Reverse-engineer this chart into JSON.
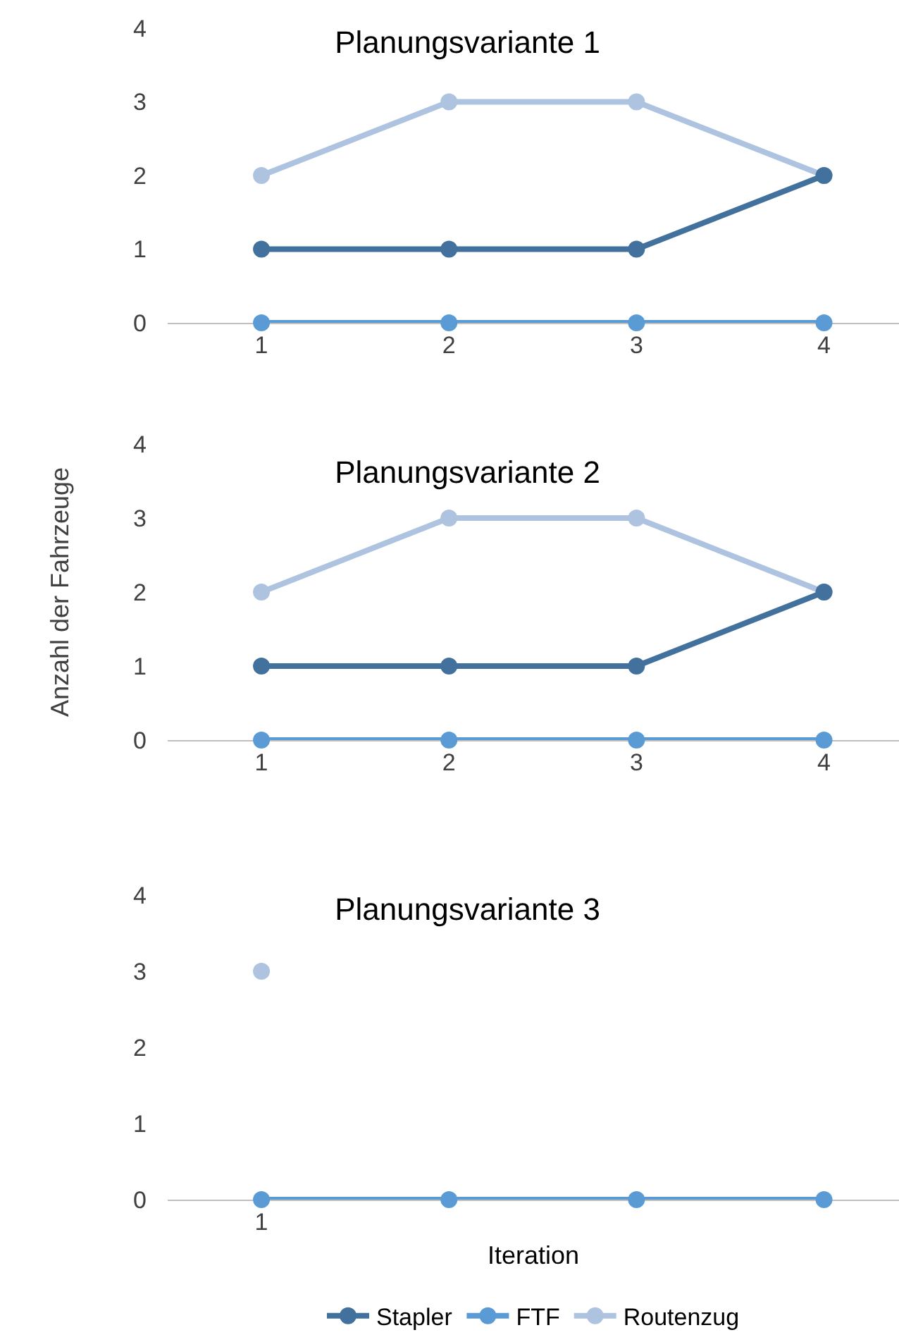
{
  "chart_data": [
    {
      "type": "line",
      "title": "Planungsvariante 1",
      "categories": [
        "1",
        "2",
        "3",
        "4"
      ],
      "ylim": [
        0,
        4
      ],
      "yticks": [
        0,
        1,
        2,
        3,
        4
      ],
      "grid": false,
      "legend": false,
      "marker": "circle",
      "line_style": "solid",
      "series": [
        {
          "color": "#adc3e0",
          "values": [
            2,
            3,
            3,
            2
          ]
        },
        {
          "color": "#41719c",
          "values": [
            1,
            1,
            1,
            2
          ]
        },
        {
          "color": "#5b9bd5",
          "values": [
            0,
            0,
            0,
            0
          ]
        }
      ]
    },
    {
      "type": "line",
      "title": "Planungsvariante 2",
      "ylabel": "Anzahl der Fahrzeuge",
      "categories": [
        "1",
        "2",
        "3",
        "4"
      ],
      "ylim": [
        0,
        4
      ],
      "yticks": [
        0,
        1,
        2,
        3,
        4
      ],
      "grid": false,
      "legend": false,
      "marker": "circle",
      "line_style": "solid",
      "series": [
        {
          "color": "#adc3e0",
          "values": [
            2,
            3,
            3,
            2
          ]
        },
        {
          "color": "#41719c",
          "values": [
            1,
            1,
            1,
            2
          ]
        },
        {
          "color": "#5b9bd5",
          "values": [
            0,
            0,
            0,
            0
          ]
        }
      ]
    },
    {
      "type": "line",
      "title": "Planungsvariante 3",
      "xlabel": "Iteration",
      "categories": [
        "1",
        null,
        null,
        null
      ],
      "ylim": [
        0,
        4
      ],
      "yticks": [
        0,
        1,
        2,
        3,
        4
      ],
      "grid": false,
      "legend": "bottom",
      "marker": "circle",
      "line_style": "solid",
      "series": [
        {
          "name": "Stapler",
          "color": "#41719c",
          "values": [
            null,
            null,
            null,
            null
          ]
        },
        {
          "name": "FTF",
          "color": "#5b9bd5",
          "values": [
            0,
            0,
            0,
            0
          ]
        },
        {
          "name": "Routenzug",
          "color": "#adc3e0",
          "values": [
            3,
            null,
            null,
            null
          ]
        }
      ]
    }
  ]
}
